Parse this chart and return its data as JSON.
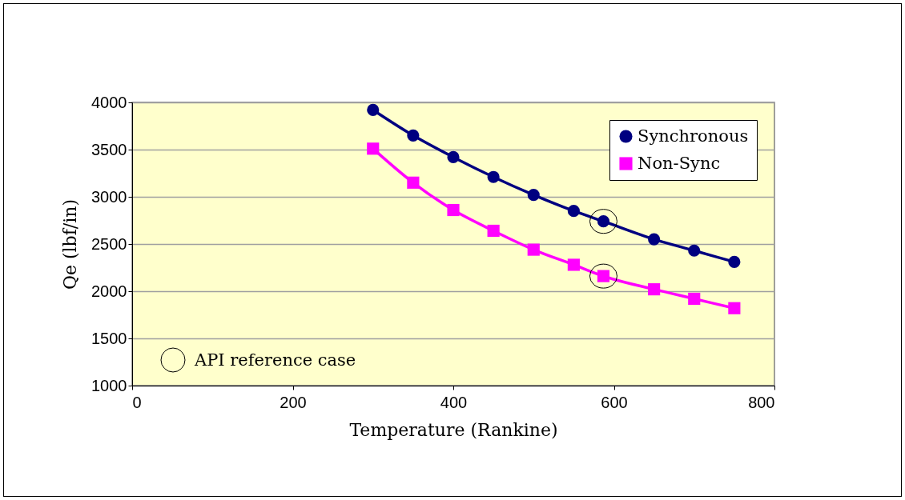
{
  "chart_data": {
    "type": "line",
    "xlabel": "Temperature (Rankine)",
    "ylabel": "Qe (lbf/in)",
    "x": [
      300,
      350,
      400,
      450,
      500,
      550,
      587,
      650,
      700,
      750
    ],
    "series": [
      {
        "name": "Synchronous",
        "color": "#000080",
        "marker": "circle",
        "values": [
          3920,
          3650,
          3420,
          3210,
          3020,
          2850,
          2740,
          2550,
          2430,
          2310
        ]
      },
      {
        "name": "Non-Sync",
        "color": "#ff00ff",
        "marker": "square",
        "values": [
          3510,
          3150,
          2860,
          2640,
          2440,
          2280,
          2160,
          2020,
          1920,
          1820
        ]
      }
    ],
    "xlim": [
      0,
      800
    ],
    "xticks": [
      0,
      200,
      400,
      600,
      800
    ],
    "ylim": [
      1000,
      4000
    ],
    "yticks": [
      1000,
      1500,
      2000,
      2500,
      3000,
      3500,
      4000
    ],
    "grid": "y",
    "legend": "top right",
    "line_style": "solid",
    "annotations": [
      "API reference case"
    ]
  }
}
